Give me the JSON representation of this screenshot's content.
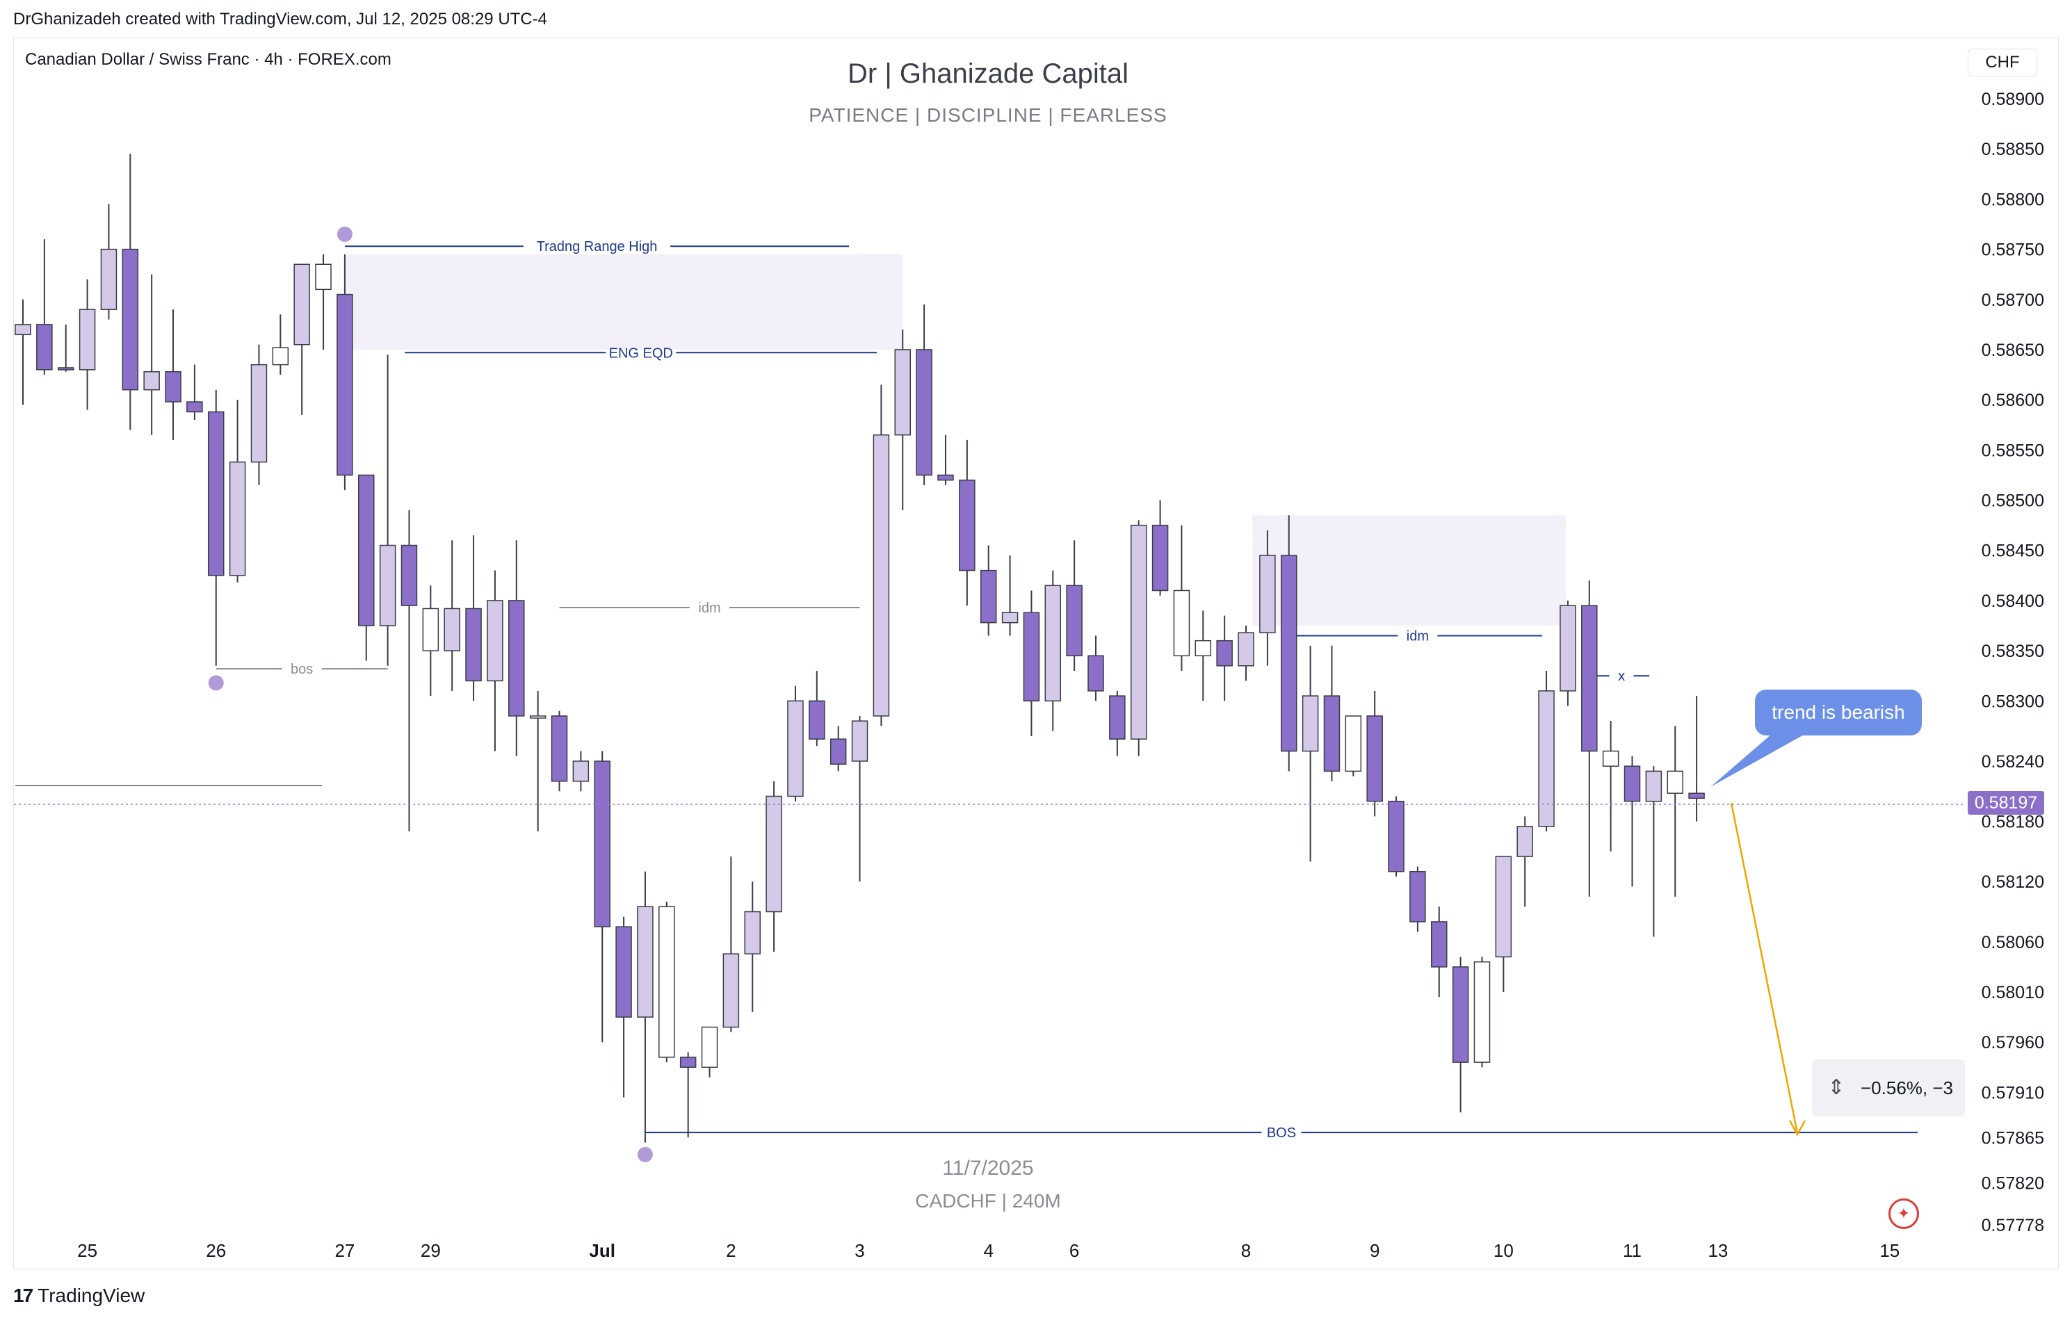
{
  "header": {
    "created_by": "DrGhanizadeh created with TradingView.com, Jul 12, 2025 08:29 UTC-4"
  },
  "symbol_line": "Canadian Dollar / Swiss Franc · 4h · FOREX.com",
  "title": "Dr | Ghanizade Capital",
  "subtitle": "PATIENCE  |  DISCIPLINE  |  FEARLESS",
  "watermark": {
    "date": "11/7/2025",
    "pair": "CADCHF | 240M"
  },
  "currency_button": "CHF",
  "current_price": "0.58197",
  "callout": "trend is bearish",
  "measure_text": "−0.56%, −3",
  "brand": {
    "logo": "17",
    "name": "TradingView"
  },
  "flag_icon": "canada-flag-icon",
  "colors": {
    "bear": "#8b6fc9",
    "bull": "#d4c9e8",
    "neutral_white": "#ffffff",
    "zone": "#f3f0f9",
    "annotation_blue": "#1c3a8c",
    "annotation_gray": "#8a8d96",
    "arrow_orange": "#f0a500",
    "price_line": "#9b7fcf"
  },
  "chart_data": {
    "type": "candlestick",
    "title": "Dr | Ghanizade Capital",
    "xlabel": "",
    "ylabel": "",
    "ylim": [
      0.57765,
      0.58935
    ],
    "y_ticks": [
      0.589,
      0.5885,
      0.588,
      0.5875,
      0.587,
      0.5865,
      0.586,
      0.5855,
      0.585,
      0.5845,
      0.584,
      0.5835,
      0.583,
      0.5824,
      0.5818,
      0.5812,
      0.5806,
      0.5801,
      0.5796,
      0.5791,
      0.57865,
      0.5782,
      0.57778
    ],
    "y_tick_labels": [
      "0.58900",
      "0.58850",
      "0.58800",
      "0.58750",
      "0.58700",
      "0.58650",
      "0.58600",
      "0.58550",
      "0.58500",
      "0.58450",
      "0.58400",
      "0.58350",
      "0.58300",
      "0.58240",
      "0.58180",
      "0.58120",
      "0.58060",
      "0.58010",
      "0.57960",
      "0.57910",
      "0.57865",
      "0.57820",
      "0.57778"
    ],
    "x_tick_labels": [
      {
        "i": 3,
        "label": "25"
      },
      {
        "i": 9,
        "label": "26"
      },
      {
        "i": 15,
        "label": "27"
      },
      {
        "i": 19,
        "label": "29"
      },
      {
        "i": 27,
        "label": "Jul"
      },
      {
        "i": 33,
        "label": "2"
      },
      {
        "i": 39,
        "label": "3"
      },
      {
        "i": 45,
        "label": "4"
      },
      {
        "i": 49,
        "label": "6"
      },
      {
        "i": 57,
        "label": "8"
      },
      {
        "i": 63,
        "label": "9"
      },
      {
        "i": 69,
        "label": "10"
      },
      {
        "i": 75,
        "label": "11"
      },
      {
        "i": 79,
        "label": "13"
      },
      {
        "i": 87,
        "label": "15"
      }
    ],
    "candles": [
      {
        "o": 0.58665,
        "h": 0.587,
        "l": 0.58595,
        "c": 0.58675,
        "t": "bull"
      },
      {
        "o": 0.58675,
        "h": 0.5876,
        "l": 0.58625,
        "c": 0.5863,
        "t": "bear"
      },
      {
        "o": 0.58632,
        "h": 0.58675,
        "l": 0.58628,
        "c": 0.58632,
        "t": "bear"
      },
      {
        "o": 0.5863,
        "h": 0.5872,
        "l": 0.5859,
        "c": 0.5869,
        "t": "bull"
      },
      {
        "o": 0.5869,
        "h": 0.58795,
        "l": 0.5868,
        "c": 0.5875,
        "t": "bull"
      },
      {
        "o": 0.5875,
        "h": 0.58845,
        "l": 0.5857,
        "c": 0.5861,
        "t": "bear"
      },
      {
        "o": 0.5861,
        "h": 0.58725,
        "l": 0.58565,
        "c": 0.58628,
        "t": "bull"
      },
      {
        "o": 0.58628,
        "h": 0.5869,
        "l": 0.5856,
        "c": 0.58598,
        "t": "bear"
      },
      {
        "o": 0.58598,
        "h": 0.58635,
        "l": 0.5858,
        "c": 0.58588,
        "t": "bear"
      },
      {
        "o": 0.58588,
        "h": 0.5861,
        "l": 0.58335,
        "c": 0.58425,
        "t": "bear"
      },
      {
        "o": 0.58425,
        "h": 0.586,
        "l": 0.58418,
        "c": 0.58538,
        "t": "bull"
      },
      {
        "o": 0.58538,
        "h": 0.58655,
        "l": 0.58515,
        "c": 0.58635,
        "t": "bull"
      },
      {
        "o": 0.58635,
        "h": 0.58685,
        "l": 0.58625,
        "c": 0.58652,
        "t": "neutral"
      },
      {
        "o": 0.58655,
        "h": 0.58735,
        "l": 0.58585,
        "c": 0.58735,
        "t": "bull"
      },
      {
        "o": 0.58735,
        "h": 0.58745,
        "l": 0.5865,
        "c": 0.5871,
        "t": "neutral"
      },
      {
        "o": 0.58705,
        "h": 0.58745,
        "l": 0.5851,
        "c": 0.58525,
        "t": "bear"
      },
      {
        "o": 0.58525,
        "h": 0.58525,
        "l": 0.5834,
        "c": 0.58375,
        "t": "bear"
      },
      {
        "o": 0.58375,
        "h": 0.58645,
        "l": 0.58335,
        "c": 0.58455,
        "t": "bull"
      },
      {
        "o": 0.58455,
        "h": 0.5849,
        "l": 0.5817,
        "c": 0.58395,
        "t": "bear"
      },
      {
        "o": 0.5835,
        "h": 0.58415,
        "l": 0.58305,
        "c": 0.58392,
        "t": "neutral"
      },
      {
        "o": 0.58392,
        "h": 0.5846,
        "l": 0.5831,
        "c": 0.5835,
        "t": "bull"
      },
      {
        "o": 0.58392,
        "h": 0.58465,
        "l": 0.583,
        "c": 0.5832,
        "t": "bear"
      },
      {
        "o": 0.5832,
        "h": 0.5843,
        "l": 0.5825,
        "c": 0.584,
        "t": "bull"
      },
      {
        "o": 0.584,
        "h": 0.5846,
        "l": 0.58245,
        "c": 0.58285,
        "t": "bear"
      },
      {
        "o": 0.58285,
        "h": 0.5831,
        "l": 0.5817,
        "c": 0.58285,
        "t": "neutral"
      },
      {
        "o": 0.58285,
        "h": 0.5829,
        "l": 0.5821,
        "c": 0.5822,
        "t": "bear"
      },
      {
        "o": 0.5822,
        "h": 0.5825,
        "l": 0.5821,
        "c": 0.5824,
        "t": "bull"
      },
      {
        "o": 0.5824,
        "h": 0.5825,
        "l": 0.5796,
        "c": 0.58075,
        "t": "bear"
      },
      {
        "o": 0.58075,
        "h": 0.58085,
        "l": 0.57905,
        "c": 0.57985,
        "t": "bear"
      },
      {
        "o": 0.57985,
        "h": 0.5813,
        "l": 0.5786,
        "c": 0.58095,
        "t": "bull"
      },
      {
        "o": 0.58095,
        "h": 0.581,
        "l": 0.5794,
        "c": 0.57945,
        "t": "neutral"
      },
      {
        "o": 0.57945,
        "h": 0.5795,
        "l": 0.57865,
        "c": 0.57935,
        "t": "bear"
      },
      {
        "o": 0.57935,
        "h": 0.57965,
        "l": 0.57925,
        "c": 0.57975,
        "t": "neutral"
      },
      {
        "o": 0.57975,
        "h": 0.58145,
        "l": 0.5797,
        "c": 0.58048,
        "t": "bull"
      },
      {
        "o": 0.58048,
        "h": 0.5812,
        "l": 0.5799,
        "c": 0.5809,
        "t": "bull"
      },
      {
        "o": 0.5809,
        "h": 0.5822,
        "l": 0.5805,
        "c": 0.58205,
        "t": "bull"
      },
      {
        "o": 0.58205,
        "h": 0.58315,
        "l": 0.582,
        "c": 0.583,
        "t": "bull"
      },
      {
        "o": 0.583,
        "h": 0.5833,
        "l": 0.58255,
        "c": 0.58262,
        "t": "bear"
      },
      {
        "o": 0.58262,
        "h": 0.58275,
        "l": 0.5823,
        "c": 0.58237,
        "t": "bear"
      },
      {
        "o": 0.5824,
        "h": 0.58285,
        "l": 0.5812,
        "c": 0.5828,
        "t": "bull"
      },
      {
        "o": 0.58285,
        "h": 0.58615,
        "l": 0.58275,
        "c": 0.58565,
        "t": "bull"
      },
      {
        "o": 0.58565,
        "h": 0.5867,
        "l": 0.5849,
        "c": 0.5865,
        "t": "bull"
      },
      {
        "o": 0.5865,
        "h": 0.58695,
        "l": 0.58515,
        "c": 0.58525,
        "t": "bear"
      },
      {
        "o": 0.58525,
        "h": 0.58565,
        "l": 0.58515,
        "c": 0.5852,
        "t": "bear"
      },
      {
        "o": 0.5852,
        "h": 0.5856,
        "l": 0.58395,
        "c": 0.5843,
        "t": "bear"
      },
      {
        "o": 0.5843,
        "h": 0.58455,
        "l": 0.58365,
        "c": 0.58378,
        "t": "bear"
      },
      {
        "o": 0.58378,
        "h": 0.58445,
        "l": 0.58365,
        "c": 0.58388,
        "t": "bull"
      },
      {
        "o": 0.58388,
        "h": 0.5841,
        "l": 0.58265,
        "c": 0.583,
        "t": "bear"
      },
      {
        "o": 0.583,
        "h": 0.5843,
        "l": 0.5827,
        "c": 0.58415,
        "t": "bull"
      },
      {
        "o": 0.58415,
        "h": 0.5846,
        "l": 0.5833,
        "c": 0.58345,
        "t": "bear"
      },
      {
        "o": 0.58345,
        "h": 0.58365,
        "l": 0.583,
        "c": 0.5831,
        "t": "bear"
      },
      {
        "o": 0.58305,
        "h": 0.5831,
        "l": 0.58245,
        "c": 0.58262,
        "t": "bear"
      },
      {
        "o": 0.58262,
        "h": 0.5848,
        "l": 0.58245,
        "c": 0.58475,
        "t": "bull"
      },
      {
        "o": 0.58475,
        "h": 0.585,
        "l": 0.58405,
        "c": 0.5841,
        "t": "bear"
      },
      {
        "o": 0.58345,
        "h": 0.58475,
        "l": 0.5833,
        "c": 0.5841,
        "t": "neutral"
      },
      {
        "o": 0.5836,
        "h": 0.5839,
        "l": 0.583,
        "c": 0.58345,
        "t": "neutral"
      },
      {
        "o": 0.5836,
        "h": 0.58385,
        "l": 0.583,
        "c": 0.58335,
        "t": "bear"
      },
      {
        "o": 0.58335,
        "h": 0.58375,
        "l": 0.5832,
        "c": 0.58368,
        "t": "bull"
      },
      {
        "o": 0.58368,
        "h": 0.5847,
        "l": 0.58335,
        "c": 0.58445,
        "t": "bull"
      },
      {
        "o": 0.58445,
        "h": 0.58485,
        "l": 0.5823,
        "c": 0.5825,
        "t": "bear"
      },
      {
        "o": 0.5825,
        "h": 0.58355,
        "l": 0.5814,
        "c": 0.58305,
        "t": "bull"
      },
      {
        "o": 0.58305,
        "h": 0.58355,
        "l": 0.5822,
        "c": 0.5823,
        "t": "bear"
      },
      {
        "o": 0.5823,
        "h": 0.58285,
        "l": 0.58225,
        "c": 0.58285,
        "t": "neutral"
      },
      {
        "o": 0.58285,
        "h": 0.5831,
        "l": 0.58185,
        "c": 0.582,
        "t": "bear"
      },
      {
        "o": 0.582,
        "h": 0.58205,
        "l": 0.58125,
        "c": 0.5813,
        "t": "bear"
      },
      {
        "o": 0.5813,
        "h": 0.58135,
        "l": 0.5807,
        "c": 0.5808,
        "t": "bear"
      },
      {
        "o": 0.5808,
        "h": 0.58095,
        "l": 0.58005,
        "c": 0.58035,
        "t": "bear"
      },
      {
        "o": 0.58035,
        "h": 0.58045,
        "l": 0.5789,
        "c": 0.5794,
        "t": "bear"
      },
      {
        "o": 0.5794,
        "h": 0.58045,
        "l": 0.57935,
        "c": 0.5804,
        "t": "neutral"
      },
      {
        "o": 0.58045,
        "h": 0.58135,
        "l": 0.5801,
        "c": 0.58145,
        "t": "bull"
      },
      {
        "o": 0.58145,
        "h": 0.58185,
        "l": 0.58095,
        "c": 0.58175,
        "t": "bull"
      },
      {
        "o": 0.58175,
        "h": 0.5833,
        "l": 0.5817,
        "c": 0.5831,
        "t": "bull"
      },
      {
        "o": 0.5831,
        "h": 0.584,
        "l": 0.58295,
        "c": 0.58395,
        "t": "bull"
      },
      {
        "o": 0.58395,
        "h": 0.5842,
        "l": 0.58105,
        "c": 0.5825,
        "t": "bear"
      },
      {
        "o": 0.5825,
        "h": 0.5828,
        "l": 0.5815,
        "c": 0.58235,
        "t": "neutral"
      },
      {
        "o": 0.58235,
        "h": 0.58245,
        "l": 0.58115,
        "c": 0.582,
        "t": "bear"
      },
      {
        "o": 0.582,
        "h": 0.58235,
        "l": 0.58065,
        "c": 0.5823,
        "t": "bull"
      },
      {
        "o": 0.5823,
        "h": 0.58275,
        "l": 0.58105,
        "c": 0.58208,
        "t": "neutral"
      },
      {
        "o": 0.58208,
        "h": 0.58305,
        "l": 0.5818,
        "c": 0.58203,
        "t": "bear"
      }
    ],
    "zones": [
      {
        "x0": 15,
        "x1": 41,
        "top": 0.58745,
        "bottom": 0.5865
      },
      {
        "x0": 57.3,
        "x1": 71.9,
        "top": 0.58485,
        "bottom": 0.58375
      }
    ],
    "annotations": [
      {
        "text": "Tradng Range High",
        "x0": 15,
        "x1": 38.5,
        "y": 0.58753,
        "color": "blue"
      },
      {
        "text": "ENG EQD",
        "x0": 17.8,
        "x1": 39.8,
        "y": 0.58647,
        "color": "blue"
      },
      {
        "text": "idm",
        "x0": 25,
        "x1": 39,
        "y": 0.58393,
        "color": "gray"
      },
      {
        "text": "bos",
        "x0": 9,
        "x1": 17,
        "y": 0.58332,
        "color": "gray"
      },
      {
        "text": "idm",
        "x0": 59.2,
        "x1": 70.8,
        "y": 0.58365,
        "color": "blue"
      },
      {
        "text": "x",
        "x0": 73.2,
        "x1": 75.8,
        "y": 0.58325,
        "color": "blue"
      },
      {
        "text": "BOS",
        "x0": 29,
        "x1": 88.3,
        "y": 0.5787,
        "color": "blue"
      }
    ],
    "pivots": [
      {
        "x": 15,
        "y": 0.58765
      },
      {
        "x": 9,
        "y": 0.58318
      },
      {
        "x": 29,
        "y": 0.57848
      }
    ],
    "grid": false,
    "legend": "none"
  }
}
